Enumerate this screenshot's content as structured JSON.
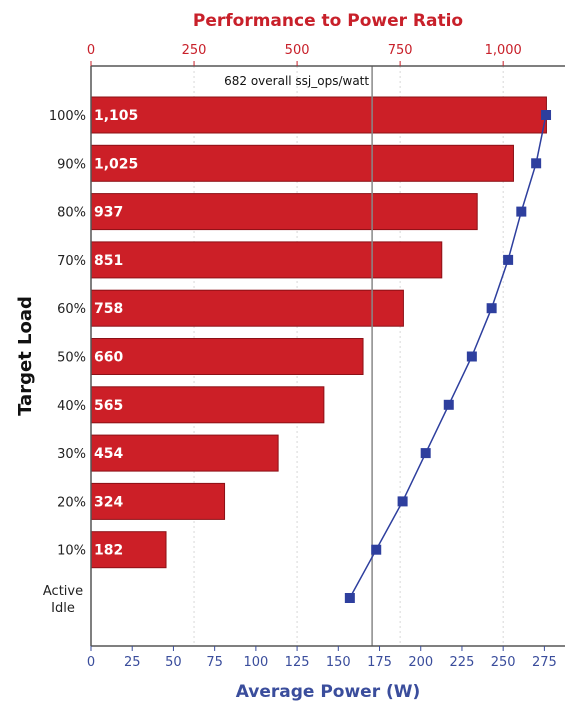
{
  "chart_data": {
    "type": "bar",
    "title": "Performance to Power Ratio",
    "xlabel": "Average Power (W)",
    "ylabel": "Target Load",
    "categories": [
      "100%",
      "90%",
      "80%",
      "70%",
      "60%",
      "50%",
      "40%",
      "30%",
      "20%",
      "10%",
      "Active Idle"
    ],
    "series": [
      {
        "axis": "top",
        "color": "#cc1f27",
        "values": [
          1105,
          1025,
          937,
          851,
          758,
          660,
          565,
          454,
          324,
          182,
          null
        ],
        "labels": [
          "1,105",
          "1,025",
          "937",
          "851",
          "758",
          "660",
          "565",
          "454",
          "324",
          "182",
          ""
        ]
      },
      {
        "axis": "bottom",
        "color": "#2e3f9e",
        "values": [
          276,
          270,
          261,
          253,
          243,
          231,
          217,
          203,
          189,
          173,
          157
        ]
      }
    ],
    "top_axis": {
      "range": [
        0,
        1150
      ],
      "ticks": [
        0,
        250,
        500,
        750,
        1000
      ],
      "tick_labels": [
        "0",
        "250",
        "500",
        "750",
        "1,000"
      ]
    },
    "bottom_axis": {
      "range": [
        0,
        287.5
      ],
      "ticks": [
        0,
        25,
        50,
        75,
        100,
        125,
        150,
        175,
        200,
        225,
        250,
        275
      ],
      "tick_labels": [
        "0",
        "25",
        "50",
        "75",
        "100",
        "125",
        "150",
        "175",
        "200",
        "225",
        "250",
        "275"
      ]
    },
    "reference_line": {
      "value": 682,
      "axis": "top",
      "label": "682 overall ssj_ops/watt"
    },
    "grid": true,
    "legend": "none"
  }
}
